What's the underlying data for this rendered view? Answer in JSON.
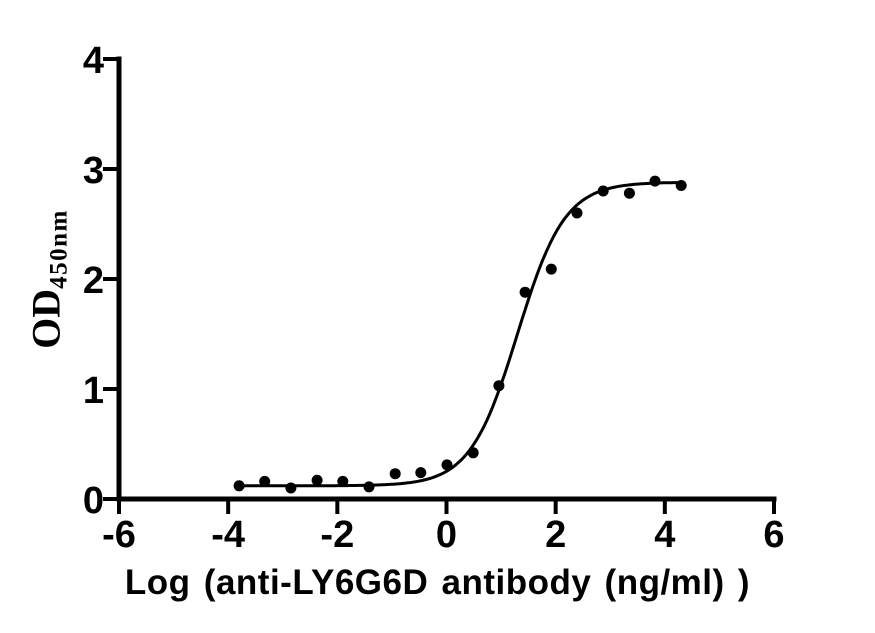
{
  "figure": {
    "background": "#ffffff"
  },
  "chart_data": {
    "type": "scatter",
    "title": "",
    "xlabel": "Log (anti-LY6G6D antibody (ng/ml) )",
    "ylabel_main": "OD",
    "ylabel_sub": "450nm",
    "xlim": [
      -6,
      6
    ],
    "ylim": [
      0,
      4
    ],
    "x_ticks": [
      -6,
      -4,
      -2,
      0,
      2,
      4,
      6
    ],
    "y_ticks": [
      0,
      1,
      2,
      3,
      4
    ],
    "grid": false,
    "legend": false,
    "marker": "filled-circle",
    "marker_color": "#000000",
    "line_color": "#000000",
    "axis_color": "#000000",
    "series": [
      {
        "x": [
          -3.8,
          -3.33,
          -2.85,
          -2.37,
          -1.9,
          -1.42,
          -0.94,
          -0.47,
          0.01,
          0.49,
          0.96,
          1.44,
          1.92,
          2.39,
          2.87,
          3.35,
          3.82,
          4.3
        ],
        "y": [
          0.12,
          0.16,
          0.1,
          0.17,
          0.16,
          0.11,
          0.23,
          0.24,
          0.31,
          0.42,
          1.03,
          1.88,
          2.09,
          2.6,
          2.8,
          2.78,
          2.89,
          2.85
        ]
      }
    ],
    "fit_curve": {
      "model": "4PL-sigmoid",
      "bottom": 0.12,
      "top": 2.88,
      "log_ec50": 1.3,
      "hill": 1.0,
      "x_start": -3.8,
      "x_end": 4.3
    }
  }
}
